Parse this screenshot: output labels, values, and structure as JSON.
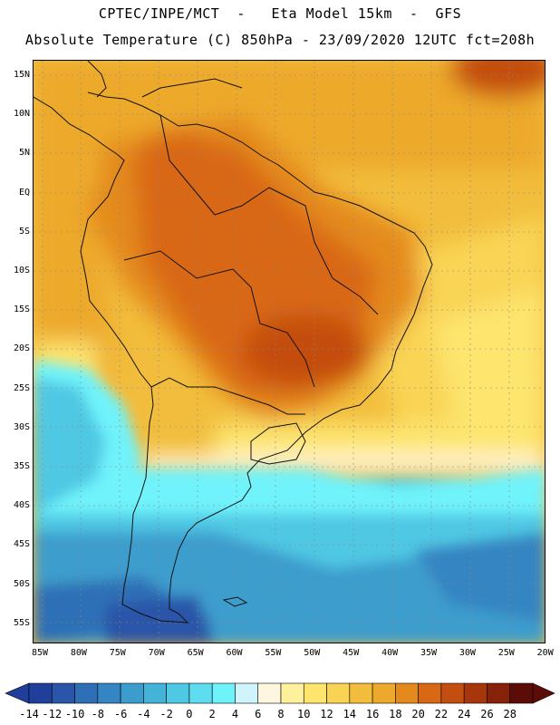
{
  "title_line1": "CPTEC/INPE/MCT  -   Eta Model 15km  -  GFS",
  "title_line2": "Absolute Temperature (C) 850hPa - 23/09/2020 12UTC fct=208h",
  "lat_labels": [
    "15N",
    "10N",
    "5N",
    "EQ",
    "5S",
    "10S",
    "15S",
    "20S",
    "25S",
    "30S",
    "35S",
    "40S",
    "45S",
    "50S",
    "55S"
  ],
  "lon_labels": [
    "85W",
    "80W",
    "75W",
    "70W",
    "65W",
    "60W",
    "55W",
    "50W",
    "45W",
    "40W",
    "35W",
    "30W",
    "25W",
    "20W"
  ],
  "colorbar": {
    "labels": [
      "-14",
      "-12",
      "-10",
      "-8",
      "-6",
      "-4",
      "-2",
      "0",
      "2",
      "4",
      "6",
      "8",
      "10",
      "12",
      "14",
      "16",
      "18",
      "20",
      "22",
      "24",
      "26",
      "28"
    ],
    "colors": [
      "#1f3f9a",
      "#2a55a8",
      "#2f6fb6",
      "#3485c2",
      "#3c9dcd",
      "#45b2d8",
      "#4fc8e4",
      "#5edcf0",
      "#6ff3fb",
      "#cff4fb",
      "#fff6e0",
      "#fff09c",
      "#fde56e",
      "#f9d454",
      "#f2bd3c",
      "#eda92c",
      "#e48a1c",
      "#d96814",
      "#c44d10",
      "#a8360c",
      "#86210a",
      "#5c0c06"
    ],
    "units": "C"
  }
}
